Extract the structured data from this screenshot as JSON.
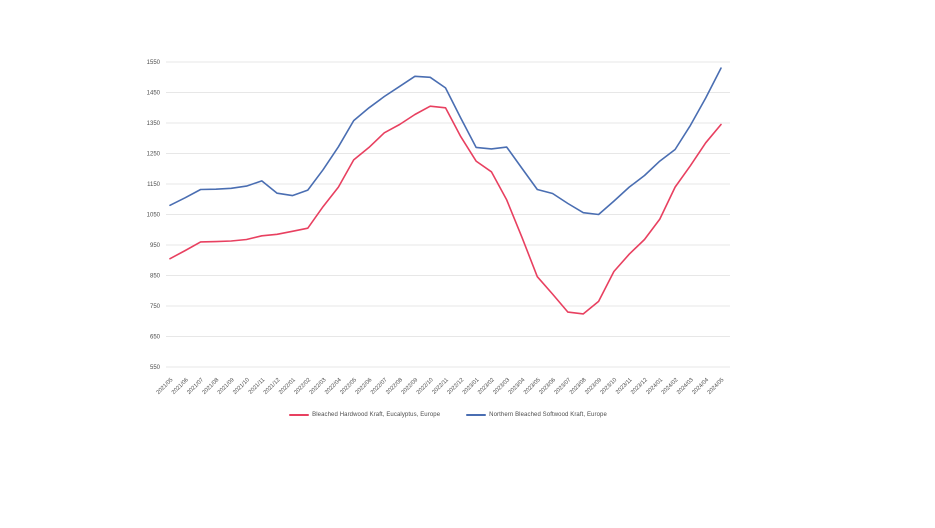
{
  "page": {
    "background": "#ffffff"
  },
  "chart_data": {
    "type": "line",
    "title": "",
    "xlabel": "",
    "ylabel": "",
    "ylim": [
      550,
      1550
    ],
    "y_ticks": [
      550,
      650,
      750,
      850,
      950,
      1050,
      1150,
      1250,
      1350,
      1450,
      1550
    ],
    "grid": "horizontal",
    "legend_position": "bottom",
    "x": [
      "2021/05",
      "2021/06",
      "2021/07",
      "2021/08",
      "2021/09",
      "2021/10",
      "2021/11",
      "2021/12",
      "2022/01",
      "2022/02",
      "2022/03",
      "2022/04",
      "2022/05",
      "2022/06",
      "2022/07",
      "2022/08",
      "2022/09",
      "2022/10",
      "2022/11",
      "2022/12",
      "2023/01",
      "2023/02",
      "2023/03",
      "2023/04",
      "2023/05",
      "2023/06",
      "2023/07",
      "2023/08",
      "2023/09",
      "2023/10",
      "2023/11",
      "2023/12",
      "2024/01",
      "2024/02",
      "2024/03",
      "2024/04",
      "2024/05"
    ],
    "series": [
      {
        "name": "Bleached Hardwood Kraft, Eucalyptus,  Europe",
        "color": "#e84060",
        "values": [
          905,
          932,
          960,
          961,
          963,
          968,
          980,
          985,
          995,
          1005,
          1076,
          1140,
          1229,
          1270,
          1318,
          1345,
          1378,
          1405,
          1400,
          1305,
          1225,
          1190,
          1098,
          975,
          846,
          789,
          730,
          724,
          765,
          863,
          920,
          968,
          1035,
          1140,
          1210,
          1285,
          1345
        ]
      },
      {
        "name": "Northern Bleached Softwood Kraft,  Europe",
        "color": "#4a6eb2",
        "values": [
          1080,
          1105,
          1132,
          1133,
          1136,
          1143,
          1160,
          1120,
          1112,
          1130,
          1197,
          1272,
          1358,
          1400,
          1437,
          1470,
          1503,
          1500,
          1465,
          1366,
          1270,
          1265,
          1271,
          1201,
          1132,
          1119,
          1086,
          1056,
          1050,
          1094,
          1140,
          1178,
          1225,
          1263,
          1342,
          1432,
          1530
        ]
      }
    ]
  },
  "style": {
    "grid_color": "#e7e7e7",
    "tick_label_color": "#4d4d4d",
    "axis_font_size_px": 6
  }
}
